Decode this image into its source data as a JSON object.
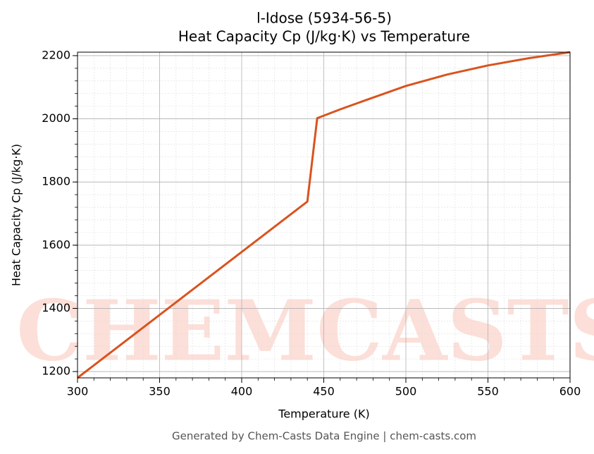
{
  "chart_data": {
    "type": "line",
    "title": "l-Idose (5934-56-5)",
    "subtitle": "Heat Capacity Cp (J/kg·K) vs Temperature",
    "x_label": "Temperature (K)",
    "y_label": "Heat Capacity Cp (J/kg·K)",
    "footer": "Generated by Chem-Casts Data Engine | chem-casts.com",
    "watermark": "CHEMCASTS",
    "x": [
      300,
      440,
      446,
      460,
      475,
      500,
      525,
      550,
      575,
      600
    ],
    "series": [
      {
        "color": "#d9531e",
        "values": [
          1180,
          1738,
          2002,
          2030,
          2058,
          2104,
          2140,
          2169,
          2192,
          2211
        ]
      }
    ],
    "xlim": [
      300,
      600
    ],
    "ylim": [
      1180,
      2211
    ],
    "xticks": [
      300,
      350,
      400,
      450,
      500,
      550,
      600
    ],
    "yticks": [
      1200,
      1400,
      1600,
      1800,
      2000,
      2200
    ],
    "grid": true
  }
}
